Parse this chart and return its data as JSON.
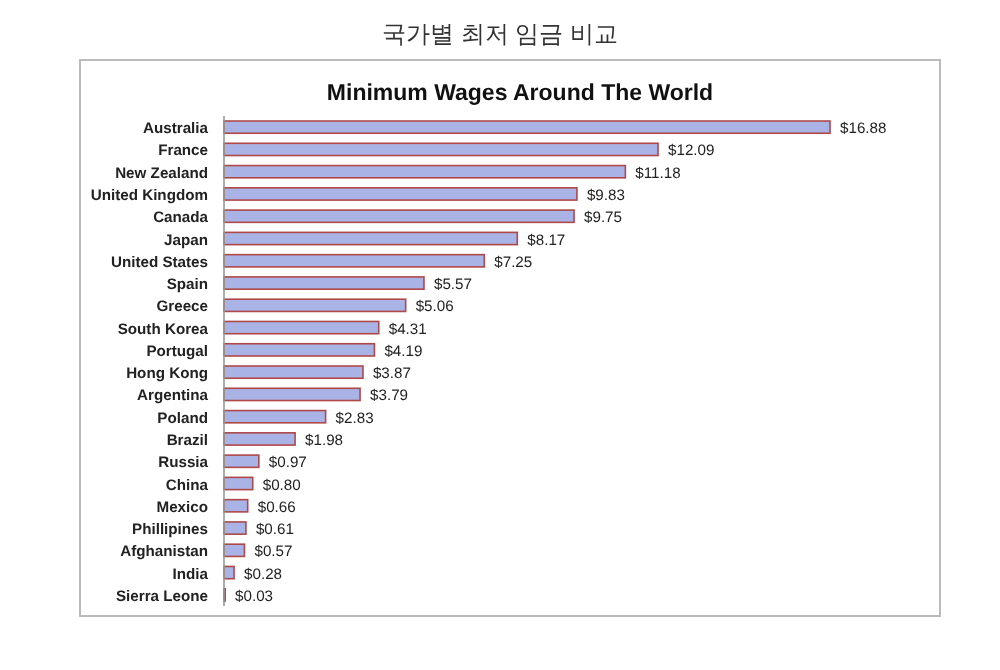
{
  "chart_data": {
    "type": "bar",
    "orientation": "horizontal",
    "title": "국가별 최저 임금 비교",
    "subtitle": "Minimum Wages Around The World",
    "categories": [
      "Australia",
      "France",
      "New Zealand",
      "United Kingdom",
      "Canada",
      "Japan",
      "United States",
      "Spain",
      "Greece",
      "South Korea",
      "Portugal",
      "Hong Kong",
      "Argentina",
      "Poland",
      "Brazil",
      "Russia",
      "China",
      "Mexico",
      "Phillipines",
      "Afghanistan",
      "India",
      "Sierra Leone"
    ],
    "values": [
      16.88,
      12.09,
      11.18,
      9.83,
      9.75,
      8.17,
      7.25,
      5.57,
      5.06,
      4.31,
      4.19,
      3.87,
      3.79,
      2.83,
      1.98,
      0.97,
      0.8,
      0.66,
      0.61,
      0.57,
      0.28,
      0.03
    ],
    "value_labels": [
      "$16.88",
      "$12.09",
      "$11.18",
      "$9.83",
      "$9.75",
      "$8.17",
      "$7.25",
      "$5.57",
      "$5.06",
      "$4.31",
      "$4.19",
      "$3.87",
      "$3.79",
      "$2.83",
      "$1.98",
      "$0.97",
      "$0.80",
      "$0.66",
      "$0.61",
      "$0.57",
      "$0.28",
      "$0.03"
    ],
    "color": "#a9b3e6"
  }
}
